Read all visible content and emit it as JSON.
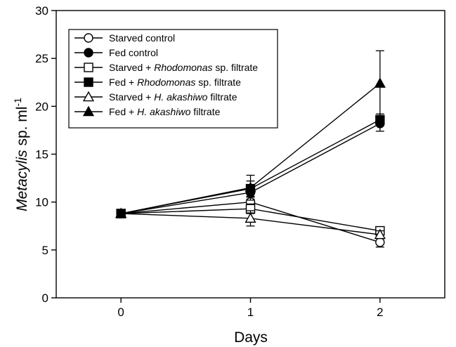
{
  "chart_data": {
    "type": "line",
    "xlabel": "Days",
    "ylabel_parts": [
      {
        "text": "Metacylis",
        "style": "italic"
      },
      {
        "text": " sp. ml",
        "style": "normal"
      }
    ],
    "ylabel_superscript": "-1",
    "x": [
      0,
      1,
      2
    ],
    "x_ticks": [
      "0",
      "1",
      "2"
    ],
    "xlim": [
      -0.5,
      2.5
    ],
    "y_ticks": [
      "0",
      "5",
      "10",
      "15",
      "20",
      "25",
      "30"
    ],
    "ylim": [
      0,
      30
    ],
    "grid": false,
    "legend_position": "top-left",
    "series": [
      {
        "name": "Starved control",
        "name_parts": [
          {
            "text": "Starved control",
            "style": "normal"
          }
        ],
        "marker": "circle",
        "filled": false,
        "values": [
          8.8,
          10.0,
          5.8
        ],
        "errors": [
          0.2,
          0.3,
          0.5
        ]
      },
      {
        "name": "Fed control",
        "name_parts": [
          {
            "text": "Fed control",
            "style": "normal"
          }
        ],
        "marker": "circle",
        "filled": true,
        "values": [
          8.8,
          11.0,
          18.2
        ],
        "errors": [
          0.2,
          0.5,
          0.8
        ]
      },
      {
        "name": "Starved + Rhodomonas sp. filtrate",
        "name_parts": [
          {
            "text": "Starved + ",
            "style": "normal"
          },
          {
            "text": "Rhodomonas",
            "style": "italic"
          },
          {
            "text": " sp. filtrate",
            "style": "normal"
          }
        ],
        "marker": "square",
        "filled": false,
        "values": [
          8.8,
          9.3,
          7.0
        ],
        "errors": [
          0.2,
          0.5,
          0.3
        ]
      },
      {
        "name": "Fed + Rhodomonas sp. filtrate",
        "name_parts": [
          {
            "text": "Fed + ",
            "style": "normal"
          },
          {
            "text": "Rhodomonas",
            "style": "italic"
          },
          {
            "text": " sp. filtrate",
            "style": "normal"
          }
        ],
        "marker": "square",
        "filled": true,
        "values": [
          8.8,
          11.4,
          18.6
        ],
        "errors": [
          0.2,
          0.8,
          0.6
        ]
      },
      {
        "name": "Starved + H. akashiwo filtrate",
        "name_parts": [
          {
            "text": "Starved + ",
            "style": "normal"
          },
          {
            "text": "H. akashiwo",
            "style": "italic"
          },
          {
            "text": " filtrate",
            "style": "normal"
          }
        ],
        "marker": "triangle",
        "filled": false,
        "values": [
          8.8,
          8.3,
          6.6
        ],
        "errors": [
          0.2,
          0.8,
          0.4
        ]
      },
      {
        "name": "Fed + H. akashiwo filtrate",
        "name_parts": [
          {
            "text": "Fed + ",
            "style": "normal"
          },
          {
            "text": "H. akashiwo",
            "style": "italic"
          },
          {
            "text": " filtrate",
            "style": "normal"
          }
        ],
        "marker": "triangle",
        "filled": true,
        "values": [
          8.8,
          11.5,
          22.4
        ],
        "errors": [
          0.2,
          1.3,
          3.4
        ]
      }
    ]
  }
}
